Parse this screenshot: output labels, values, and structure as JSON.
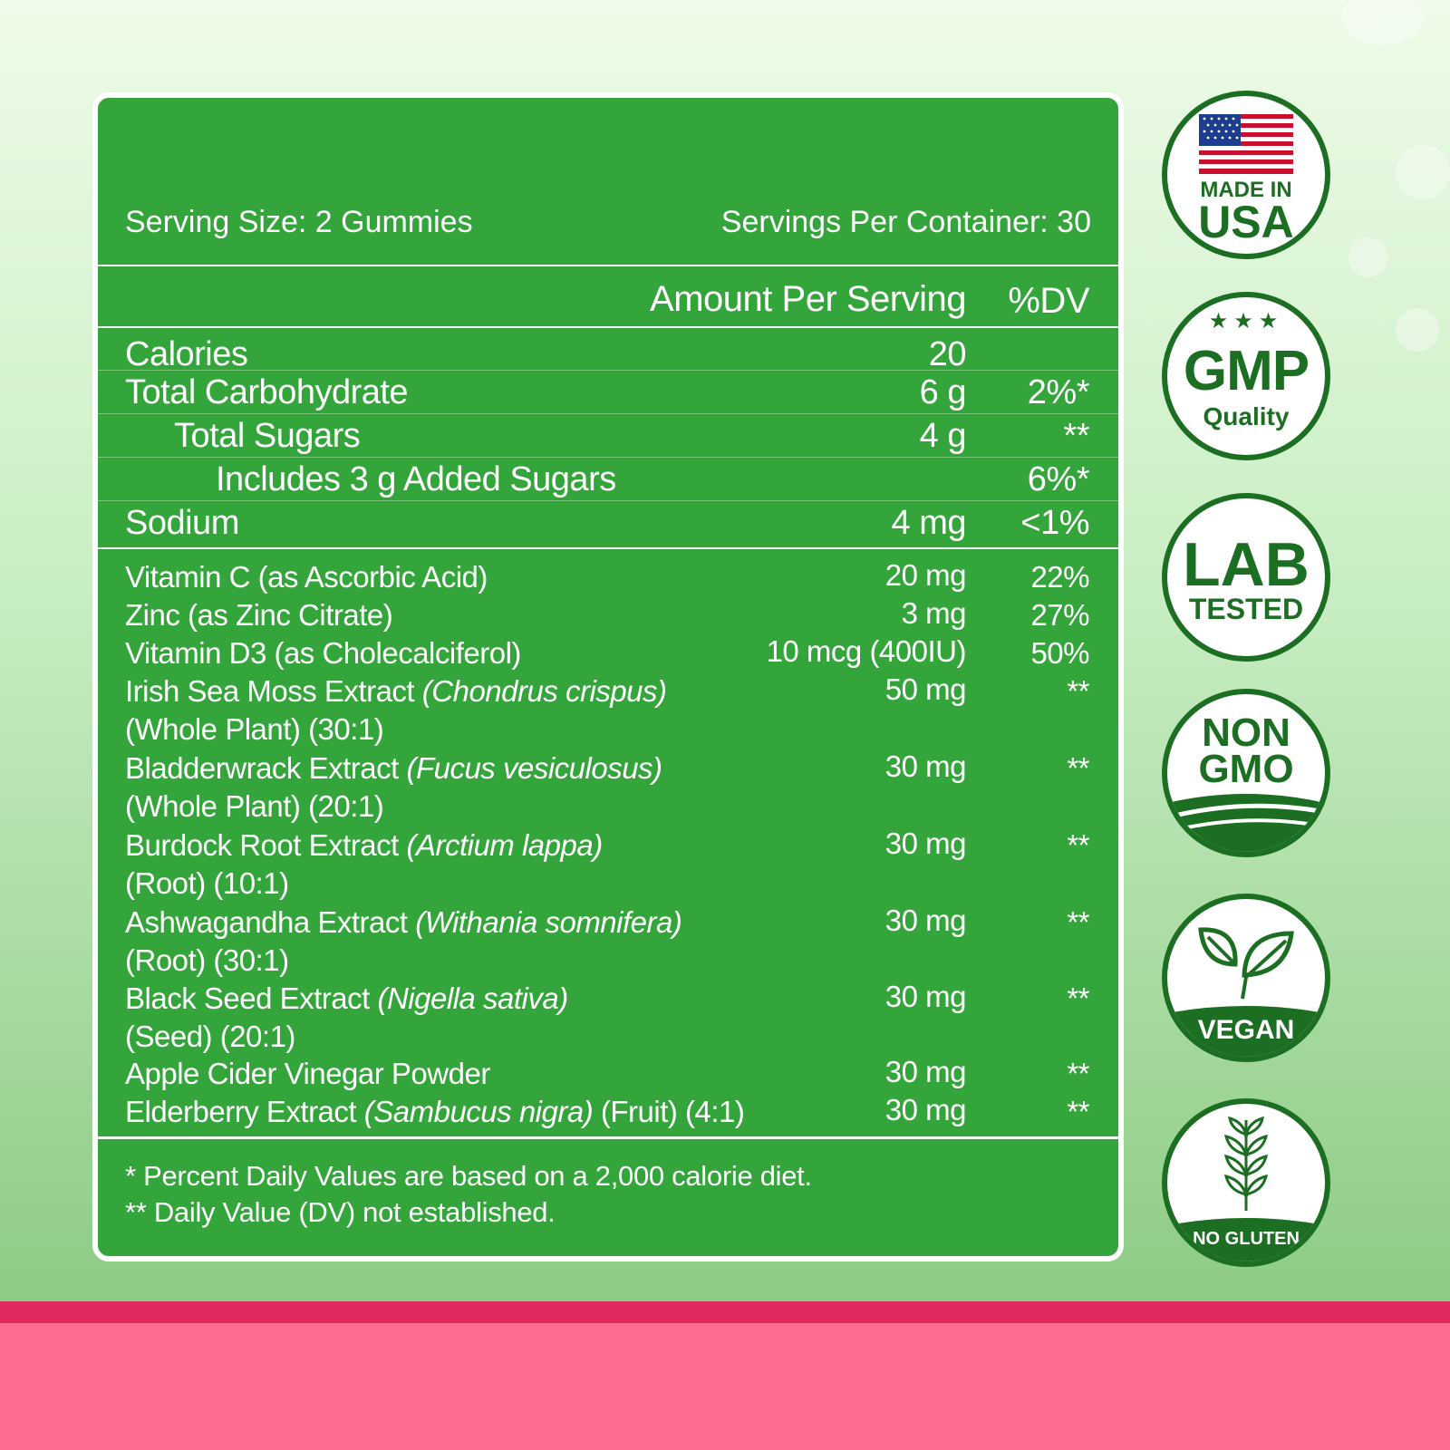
{
  "serving": {
    "size": "Serving Size: 2 Gummies",
    "per_container": "Servings Per Container: 30"
  },
  "header": {
    "amount": "Amount Per Serving",
    "dv": "%DV"
  },
  "nutrients": [
    {
      "name": "Calories",
      "amount": "20",
      "dv": ""
    },
    {
      "name": "Total Carbohydrate",
      "amount": "6 g",
      "dv": "2%*"
    },
    {
      "name": "Total Sugars",
      "amount": "4 g",
      "dv": "**"
    },
    {
      "name": "Includes 3 g Added Sugars",
      "amount": "",
      "dv": "6%*"
    },
    {
      "name": "Sodium",
      "amount": "4 mg",
      "dv": "<1%"
    }
  ],
  "ingredients": [
    {
      "name": "Vitamin C (as Ascorbic Acid)",
      "latin": "",
      "line2": "",
      "amount": "20 mg",
      "dv": "22%"
    },
    {
      "name": "Zinc (as Zinc Citrate)",
      "latin": "",
      "line2": "",
      "amount": "3 mg",
      "dv": "27%"
    },
    {
      "name": "Vitamin D3 (as Cholecalciferol)",
      "latin": "",
      "line2": "",
      "amount": "10 mcg (400IU)",
      "dv": "50%"
    },
    {
      "name": "Irish Sea Moss Extract ",
      "latin": "(Chondrus crispus)",
      "line2": "(Whole Plant) (30:1)",
      "amount": "50 mg",
      "dv": "**"
    },
    {
      "name": "Bladderwrack Extract ",
      "latin": "(Fucus vesiculosus)",
      "line2": "(Whole Plant) (20:1)",
      "amount": "30 mg",
      "dv": "**"
    },
    {
      "name": "Burdock Root Extract ",
      "latin": "(Arctium lappa)",
      "line2": "(Root) (10:1)",
      "amount": "30 mg",
      "dv": "**"
    },
    {
      "name": "Ashwagandha Extract ",
      "latin": "(Withania somnifera)",
      "line2": "(Root) (30:1)",
      "amount": "30 mg",
      "dv": "**"
    },
    {
      "name": "Black Seed Extract ",
      "latin": "(Nigella sativa)",
      "line2": "(Seed) (20:1)",
      "amount": "30 mg",
      "dv": "**"
    },
    {
      "name": "Apple Cider Vinegar Powder",
      "latin": "",
      "line2": "",
      "amount": "30 mg",
      "dv": "**"
    },
    {
      "name": "Elderberry Extract ",
      "latin": "(Sambucus nigra)",
      "suffix": " (Fruit) (4:1)",
      "line2": "",
      "amount": "30 mg",
      "dv": "**"
    }
  ],
  "footnotes": {
    "line1": "* Percent Daily Values are based on a 2,000 calorie diet.",
    "line2": "** Daily Value (DV) not established."
  },
  "badges": {
    "usa": {
      "top": "MADE IN",
      "main": "USA"
    },
    "gmp": {
      "main": "GMP",
      "sub": "Quality"
    },
    "lab": {
      "main": "LAB",
      "sub": "TESTED"
    },
    "nongmo": {
      "line1": "NON",
      "line2": "GMO"
    },
    "vegan": {
      "label": "VEGAN"
    },
    "gluten": {
      "label": "NO GLUTEN"
    }
  },
  "colors": {
    "panel": "#33a53a",
    "badge_green": "#1c6e23",
    "band_dark": "#e02a5e",
    "band_pink": "#ff6a90"
  }
}
